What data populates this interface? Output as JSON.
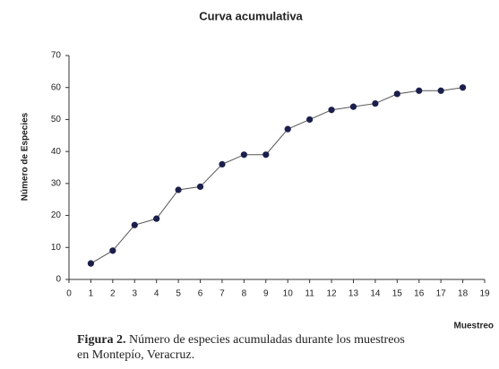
{
  "chart_data": {
    "type": "line",
    "title": "Curva acumulativa",
    "x_label": "Muestreo",
    "y_label": "Número de Especies",
    "x": [
      1,
      2,
      3,
      4,
      5,
      6,
      7,
      8,
      9,
      10,
      11,
      12,
      13,
      14,
      15,
      16,
      17,
      18
    ],
    "values": [
      5,
      9,
      17,
      19,
      28,
      29,
      36,
      39,
      39,
      47,
      50,
      53,
      54,
      55,
      58,
      59,
      59,
      60
    ],
    "line_color": "#555555",
    "marker_color": "#1b1f4b",
    "xlim": [
      0,
      19
    ],
    "xticks": [
      0,
      1,
      2,
      3,
      4,
      5,
      6,
      7,
      8,
      9,
      10,
      11,
      12,
      13,
      14,
      15,
      16,
      17,
      18,
      19
    ],
    "ylim": [
      0,
      70
    ],
    "yticks": [
      0,
      10,
      20,
      30,
      40,
      50,
      60,
      70
    ],
    "grid": false
  },
  "caption": {
    "label": "Figura 2.",
    "lines": [
      "Número de especies acumuladas durante los muestreos",
      "en Montepío, Veracruz."
    ]
  }
}
